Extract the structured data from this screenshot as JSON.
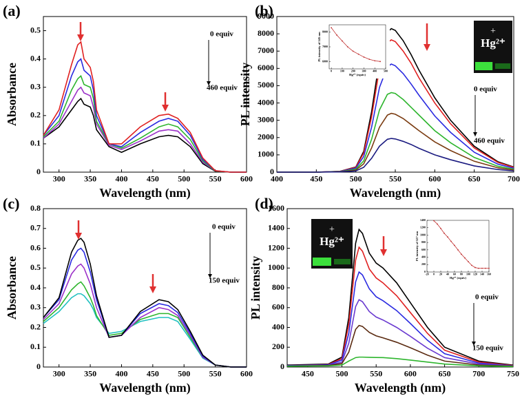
{
  "chart_data": [
    {
      "type": "line",
      "panel": "(a)",
      "xlabel": "Wavelength (nm)",
      "ylabel": "Absorbance",
      "annotations": [
        "0 equiv",
        "460 equiv"
      ],
      "xlim": [
        275,
        600
      ],
      "ylim": [
        0,
        0.55
      ],
      "xticks": [
        300,
        350,
        400,
        450,
        500,
        550,
        600
      ],
      "yticks": [
        0.0,
        0.1,
        0.2,
        0.3,
        0.4,
        0.5
      ],
      "x": [
        275,
        300,
        320,
        330,
        335,
        340,
        350,
        355,
        360,
        380,
        400,
        430,
        460,
        475,
        490,
        510,
        530,
        550,
        575,
        600
      ],
      "series": [
        {
          "color": "#000000",
          "values": [
            0.12,
            0.16,
            0.22,
            0.25,
            0.26,
            0.24,
            0.23,
            0.2,
            0.15,
            0.09,
            0.07,
            0.1,
            0.125,
            0.13,
            0.125,
            0.09,
            0.03,
            0.003,
            0,
            0
          ]
        },
        {
          "color": "#9b30c8",
          "values": [
            0.12,
            0.17,
            0.25,
            0.29,
            0.3,
            0.28,
            0.27,
            0.23,
            0.17,
            0.095,
            0.08,
            0.11,
            0.145,
            0.15,
            0.145,
            0.1,
            0.035,
            0.004,
            0,
            0
          ]
        },
        {
          "color": "#2db52d",
          "values": [
            0.125,
            0.18,
            0.29,
            0.33,
            0.34,
            0.31,
            0.3,
            0.26,
            0.18,
            0.1,
            0.085,
            0.12,
            0.16,
            0.17,
            0.16,
            0.115,
            0.04,
            0.004,
            0,
            0
          ]
        },
        {
          "color": "#2a2ae0",
          "values": [
            0.13,
            0.2,
            0.34,
            0.39,
            0.4,
            0.36,
            0.34,
            0.29,
            0.2,
            0.1,
            0.09,
            0.14,
            0.18,
            0.19,
            0.18,
            0.13,
            0.045,
            0.005,
            0,
            0
          ]
        },
        {
          "color": "#e02020",
          "values": [
            0.13,
            0.22,
            0.38,
            0.45,
            0.46,
            0.4,
            0.37,
            0.32,
            0.22,
            0.1,
            0.1,
            0.16,
            0.2,
            0.205,
            0.19,
            0.14,
            0.05,
            0.005,
            0,
            0
          ]
        }
      ]
    },
    {
      "type": "line",
      "panel": "(b)",
      "xlabel": "Wavelength (nm)",
      "ylabel": "PL intensity",
      "annotations": [
        "0 equiv",
        "460 equiv"
      ],
      "photo_plus": "+",
      "photo_label": "Hg²⁺",
      "xlim": [
        400,
        700
      ],
      "ylim": [
        0,
        9000
      ],
      "xticks": [
        400,
        450,
        500,
        550,
        600,
        650,
        700
      ],
      "yticks": [
        0,
        1000,
        2000,
        3000,
        4000,
        5000,
        6000,
        7000,
        8000,
        9000
      ],
      "x": [
        400,
        450,
        480,
        500,
        510,
        520,
        530,
        540,
        545,
        550,
        560,
        570,
        580,
        600,
        620,
        650,
        680,
        700
      ],
      "series": [
        {
          "color": "#000000",
          "values": [
            0,
            0,
            50,
            300,
            1200,
            3500,
            6500,
            8100,
            8300,
            8200,
            7600,
            6800,
            5900,
            4300,
            3000,
            1500,
            600,
            300
          ]
        },
        {
          "color": "#e02020",
          "values": [
            0,
            0,
            45,
            280,
            1100,
            3200,
            6000,
            7500,
            7650,
            7550,
            7000,
            6300,
            5450,
            4000,
            2800,
            1400,
            560,
            280
          ]
        },
        {
          "color": "#2a2ae0",
          "values": [
            0,
            0,
            40,
            230,
            900,
            2600,
            4900,
            6100,
            6250,
            6150,
            5700,
            5100,
            4450,
            3250,
            2300,
            1150,
            460,
            230
          ]
        },
        {
          "color": "#2db52d",
          "values": [
            0,
            0,
            30,
            170,
            650,
            1900,
            3600,
            4500,
            4600,
            4550,
            4200,
            3750,
            3300,
            2400,
            1700,
            850,
            340,
            170
          ]
        },
        {
          "color": "#7a3b10",
          "values": [
            0,
            0,
            25,
            120,
            480,
            1400,
            2600,
            3300,
            3400,
            3350,
            3100,
            2750,
            2400,
            1750,
            1250,
            630,
            250,
            125
          ]
        },
        {
          "color": "#1a1a80",
          "values": [
            0,
            0,
            15,
            70,
            280,
            800,
            1500,
            1900,
            1950,
            1920,
            1780,
            1600,
            1380,
            1000,
            720,
            360,
            150,
            70
          ]
        }
      ],
      "inset": {
        "type": "line",
        "xlabel": "Hg²⁺ (equiv)",
        "ylabel": "PL intensity of 545 nm",
        "color": "#c03030",
        "xlim": [
          -20,
          500
        ],
        "ylim": [
          5500,
          8500
        ],
        "xticks": [
          0,
          100,
          200,
          300,
          400,
          500
        ],
        "yticks": [
          6000,
          7000,
          8000
        ],
        "x": [
          0,
          50,
          100,
          150,
          200,
          250,
          300,
          350,
          400,
          450
        ],
        "values": [
          8300,
          7800,
          7400,
          7000,
          6700,
          6500,
          6300,
          6150,
          6050,
          6000
        ]
      }
    },
    {
      "type": "line",
      "panel": "(c)",
      "xlabel": "Wavelength (nm)",
      "ylabel": "Absorbance",
      "annotations": [
        "0 equiv",
        "150 equiv"
      ],
      "xlim": [
        275,
        600
      ],
      "ylim": [
        0,
        0.8
      ],
      "xticks": [
        300,
        350,
        400,
        450,
        500,
        550,
        600
      ],
      "yticks": [
        0.0,
        0.1,
        0.2,
        0.3,
        0.4,
        0.5,
        0.6,
        0.7,
        0.8
      ],
      "x": [
        275,
        300,
        320,
        330,
        335,
        340,
        350,
        355,
        360,
        380,
        400,
        430,
        460,
        475,
        490,
        510,
        530,
        550,
        575,
        600
      ],
      "series": [
        {
          "color": "#20c0c0",
          "values": [
            0.22,
            0.28,
            0.35,
            0.37,
            0.37,
            0.36,
            0.32,
            0.29,
            0.25,
            0.17,
            0.18,
            0.23,
            0.25,
            0.25,
            0.23,
            0.14,
            0.045,
            0.01,
            0,
            0
          ]
        },
        {
          "color": "#2db52d",
          "values": [
            0.23,
            0.3,
            0.39,
            0.42,
            0.43,
            0.41,
            0.35,
            0.31,
            0.26,
            0.16,
            0.17,
            0.24,
            0.27,
            0.27,
            0.25,
            0.15,
            0.05,
            0.01,
            0,
            0
          ]
        },
        {
          "color": "#9b30c8",
          "values": [
            0.24,
            0.32,
            0.47,
            0.51,
            0.52,
            0.5,
            0.42,
            0.36,
            0.3,
            0.15,
            0.16,
            0.25,
            0.3,
            0.29,
            0.26,
            0.16,
            0.05,
            0.01,
            0,
            0
          ]
        },
        {
          "color": "#2a2ae0",
          "values": [
            0.25,
            0.34,
            0.54,
            0.59,
            0.6,
            0.58,
            0.48,
            0.41,
            0.34,
            0.15,
            0.16,
            0.27,
            0.32,
            0.31,
            0.275,
            0.17,
            0.055,
            0.01,
            0,
            0
          ]
        },
        {
          "color": "#000000",
          "values": [
            0.25,
            0.35,
            0.58,
            0.64,
            0.65,
            0.63,
            0.52,
            0.44,
            0.36,
            0.15,
            0.16,
            0.28,
            0.34,
            0.33,
            0.29,
            0.18,
            0.06,
            0.01,
            0,
            0
          ]
        }
      ]
    },
    {
      "type": "line",
      "panel": "(d)",
      "xlabel": "Wavelength (nm)",
      "ylabel": "PL intensity",
      "annotations": [
        "0 equiv",
        "150 equiv"
      ],
      "photo_plus": "+",
      "photo_label": "Hg²⁺",
      "xlim": [
        420,
        750
      ],
      "ylim": [
        0,
        1600
      ],
      "xticks": [
        450,
        500,
        550,
        600,
        650,
        700,
        750
      ],
      "yticks": [
        0,
        200,
        400,
        600,
        800,
        1000,
        1200,
        1400,
        1600
      ],
      "x": [
        420,
        450,
        480,
        500,
        510,
        520,
        525,
        530,
        540,
        550,
        560,
        580,
        600,
        625,
        650,
        700,
        750
      ],
      "series": [
        {
          "color": "#000000",
          "values": [
            20,
            25,
            30,
            100,
            500,
            1250,
            1390,
            1350,
            1150,
            1050,
            1000,
            850,
            650,
            400,
            200,
            60,
            20
          ]
        },
        {
          "color": "#e02020",
          "values": [
            15,
            20,
            25,
            85,
            430,
            1080,
            1210,
            1170,
            990,
            900,
            850,
            720,
            550,
            340,
            170,
            50,
            15
          ]
        },
        {
          "color": "#2a2ae0",
          "values": [
            15,
            18,
            22,
            70,
            340,
            860,
            960,
            930,
            790,
            710,
            670,
            570,
            440,
            270,
            135,
            40,
            12
          ]
        },
        {
          "color": "#6a3ad0",
          "values": [
            12,
            15,
            18,
            50,
            240,
            610,
            680,
            660,
            560,
            505,
            475,
            400,
            310,
            190,
            95,
            30,
            10
          ]
        },
        {
          "color": "#5a2a10",
          "values": [
            10,
            12,
            15,
            35,
            150,
            380,
            420,
            410,
            350,
            315,
            295,
            250,
            195,
            120,
            60,
            20,
            8
          ]
        },
        {
          "color": "#2db52d",
          "values": [
            8,
            10,
            12,
            20,
            60,
            95,
            100,
            100,
            98,
            96,
            95,
            85,
            70,
            50,
            30,
            12,
            5
          ]
        }
      ],
      "inset": {
        "type": "line",
        "xlabel": "Hg²⁺ (equiv)",
        "ylabel": "PL intensity of 527 nm",
        "color": "#c03030",
        "xlim": [
          -20,
          160
        ],
        "ylim": [
          0,
          1400
        ],
        "xticks": [
          -20,
          0,
          20,
          40,
          60,
          80,
          100,
          120,
          140,
          160
        ],
        "yticks": [
          0,
          200,
          400,
          600,
          800,
          1000,
          1200,
          1400
        ],
        "x": [
          0,
          10,
          20,
          30,
          40,
          50,
          60,
          70,
          80,
          90,
          100,
          110,
          120,
          130,
          140,
          150,
          160
        ],
        "values": [
          1390,
          1300,
          1180,
          1050,
          950,
          830,
          720,
          600,
          480,
          380,
          280,
          180,
          120,
          100,
          100,
          100,
          100
        ]
      }
    }
  ]
}
